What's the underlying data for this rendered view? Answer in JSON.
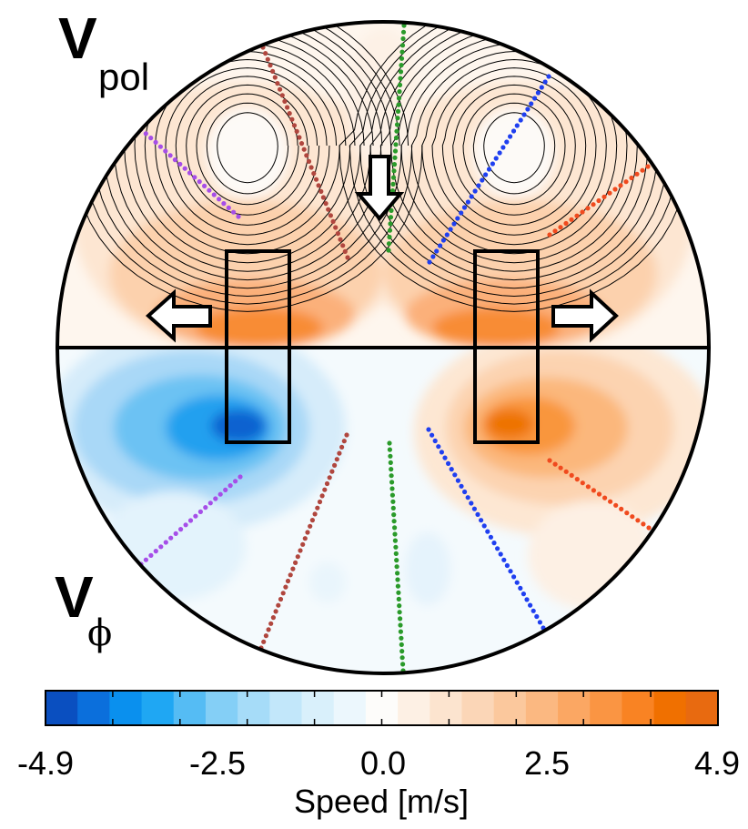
{
  "upper_panel": {
    "label_main": "V",
    "label_sub": "pol"
  },
  "lower_panel": {
    "label_main": "V",
    "label_sub": "ϕ"
  },
  "colorbar": {
    "title": "Speed [m/s]",
    "tick_labels": [
      "-4.9",
      "-2.5",
      "0.0",
      "2.5",
      "4.9"
    ],
    "min": -4.9,
    "max": 4.9,
    "n_bins": 21,
    "colors": [
      "#0a4fc0",
      "#0b6fdc",
      "#0a90ee",
      "#1fa7f3",
      "#55bcf4",
      "#84cff6",
      "#a6dcf8",
      "#c2e7fa",
      "#d9f0fb",
      "#ecf7fd",
      "#fdfcfa",
      "#fdf0e4",
      "#fce4cf",
      "#fbd6b7",
      "#fbc89d",
      "#fbb881",
      "#fba763",
      "#fa9543",
      "#f98323",
      "#f07000",
      "#e86a10"
    ]
  },
  "colors": {
    "purple": "#a64ee8",
    "brown": "#b0463e",
    "green": "#2a9a2a",
    "blue": "#1f3ff0",
    "red": "#f04a1e"
  },
  "icons": [
    "arrow-down-icon",
    "arrow-left-icon",
    "arrow-right-icon"
  ]
}
